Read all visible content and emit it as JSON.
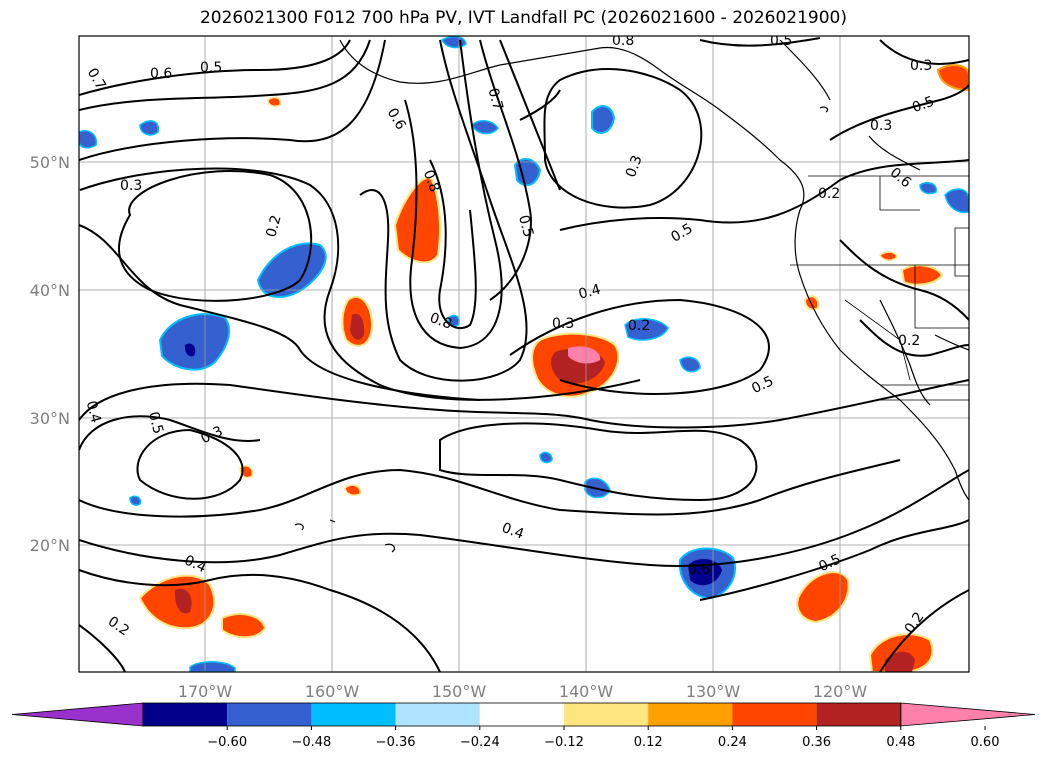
{
  "title": "2026021300 F012 700 hPa PV, IVT Landfall PC (2026021600 - 2026021900)",
  "map": {
    "lat_labels": [
      "50°N",
      "40°N",
      "30°N",
      "20°N"
    ],
    "lon_labels": [
      "170°W",
      "160°W",
      "150°W",
      "140°W",
      "130°W",
      "120°W"
    ],
    "contour_labels": [
      "0.7",
      "0.6",
      "0.5",
      "0.3",
      "0.2",
      "0.6",
      "0.7",
      "0.8",
      "0.5",
      "0.3",
      "0.5",
      "0.4",
      "0.3",
      "0.8",
      "0.2",
      "0.5",
      "0.4",
      "0.5",
      "0.3",
      "0.4",
      "0.5",
      "0.6",
      "0.4",
      "0.2",
      "0.2",
      "0.3",
      "0.2",
      "0.2",
      "0.5",
      "0.3",
      "0.6",
      "0.5",
      "0.8"
    ],
    "colors": {
      "neg_strong": "#00008b",
      "neg_mid": "#3560d0",
      "neg_light": "#00bfff",
      "pos_light": "#ffe680",
      "pos_orange": "#ff9f00",
      "pos_red": "#ff4500",
      "pos_dark": "#b22222",
      "pos_pink": "#ff80ab"
    }
  },
  "colorbar": {
    "ticks": [
      "−0.60",
      "−0.48",
      "−0.36",
      "−0.24",
      "−0.12",
      "0.12",
      "0.24",
      "0.36",
      "0.48",
      "0.60"
    ],
    "colors": [
      "#9932cc",
      "#00008b",
      "#3560d0",
      "#00bfff",
      "#aee4ff",
      "#ffffff",
      "#ffe680",
      "#ff9f00",
      "#ff4500",
      "#b22222",
      "#ff80ab"
    ]
  }
}
